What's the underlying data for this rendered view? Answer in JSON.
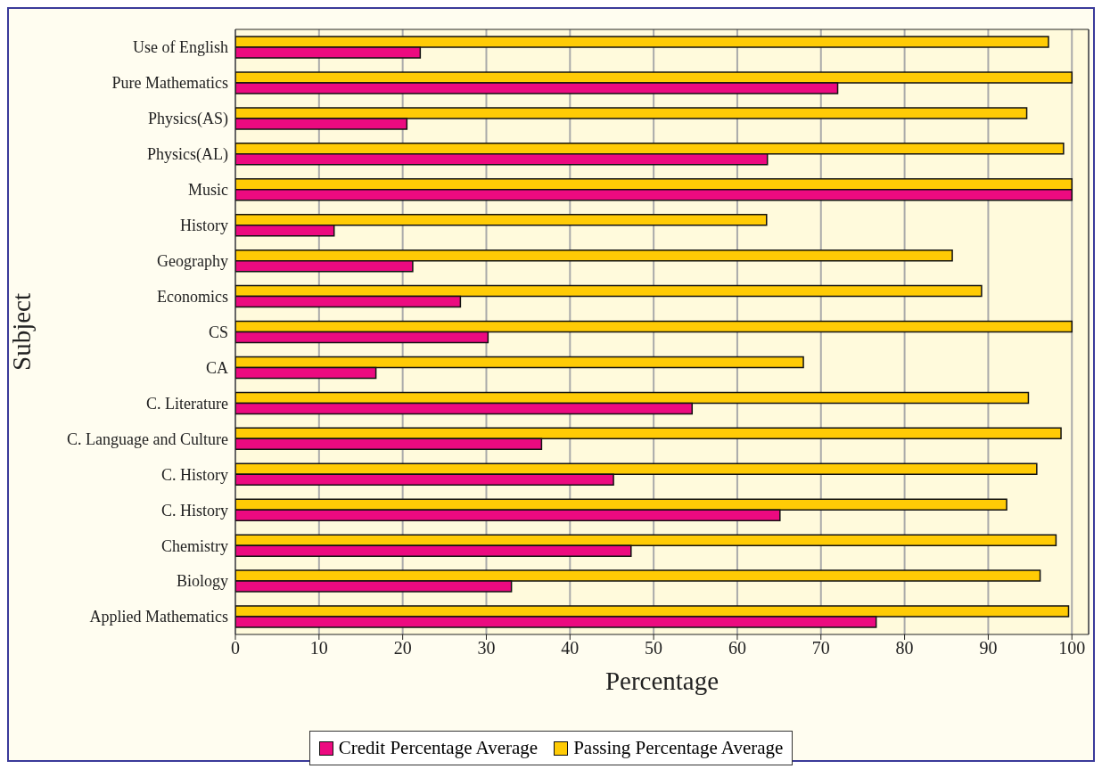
{
  "chart_data": {
    "type": "bar",
    "orientation": "horizontal",
    "xlabel": "Percentage",
    "ylabel": "Subject",
    "categories": [
      "Use of English",
      "Pure Mathematics",
      "Physics(AS)",
      "Physics(AL)",
      "Music",
      "History",
      "Geography",
      "Economics",
      "CS",
      "CA",
      "C. Literature",
      "C. Language and Culture",
      "C. History",
      "C. History",
      "Chemistry",
      "Biology",
      "Applied Mathematics"
    ],
    "series": [
      {
        "name": "Credit Percentage Average",
        "color": "#ec0a80",
        "values": [
          22.1,
          72.0,
          20.5,
          63.6,
          100,
          11.8,
          21.2,
          26.9,
          30.2,
          16.8,
          54.6,
          36.6,
          45.2,
          65.1,
          47.3,
          33.0,
          76.6
        ]
      },
      {
        "name": "Passing Percentage Average",
        "color": "#ffcb05",
        "values": [
          97.2,
          100,
          94.6,
          99.0,
          100,
          63.5,
          85.7,
          89.2,
          100,
          67.9,
          94.8,
          98.7,
          95.8,
          92.2,
          98.1,
          96.2,
          99.6
        ]
      }
    ],
    "xlim": [
      0,
      102
    ],
    "xticks": [
      0,
      10,
      20,
      30,
      40,
      50,
      60,
      70,
      80,
      90,
      100
    ],
    "grid": "x",
    "legend": "bottom"
  }
}
